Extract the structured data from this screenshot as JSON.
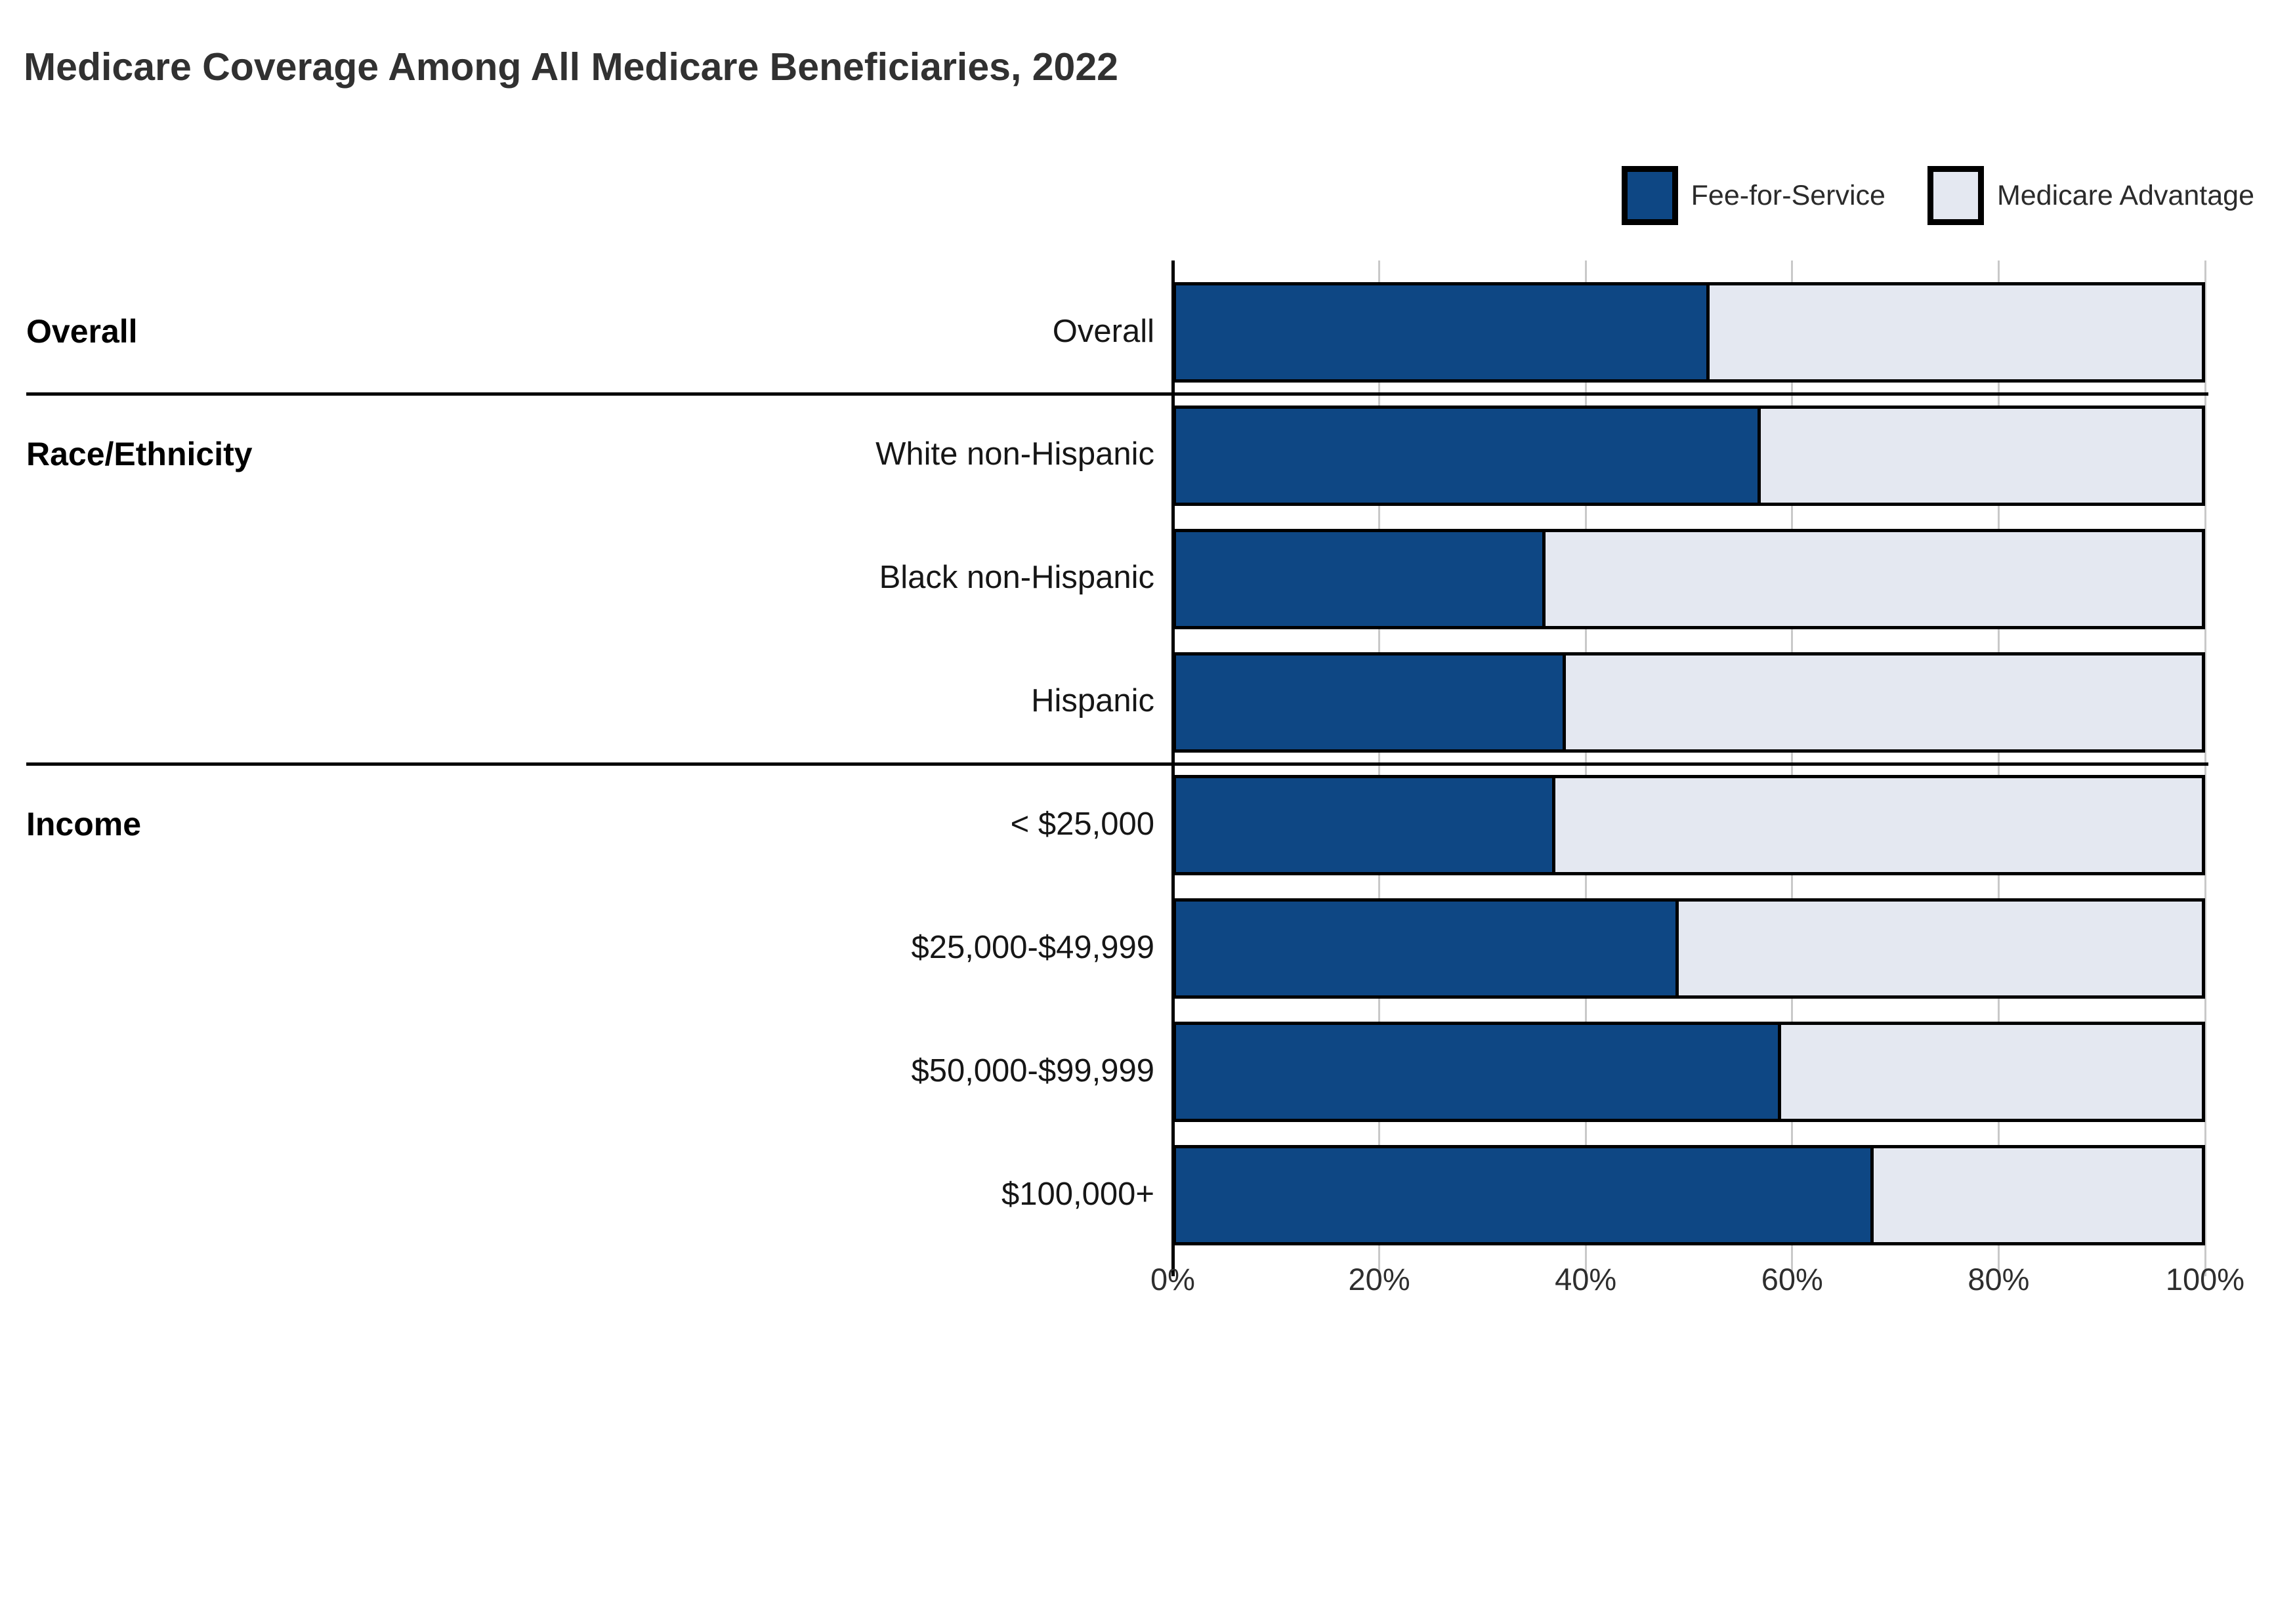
{
  "title": "Medicare Coverage Among All Medicare Beneficiaries, 2022",
  "legend": {
    "items": [
      {
        "label": "Fee-for-Service",
        "color": "#0E4784"
      },
      {
        "label": "Medicare Advantage",
        "color": "#E4E8F1"
      }
    ]
  },
  "chart_data": {
    "type": "bar",
    "stacked": true,
    "orientation": "horizontal",
    "title": "Medicare Coverage Among All Medicare Beneficiaries, 2022",
    "xlabel": "",
    "ylabel": "",
    "xlim": [
      0,
      100
    ],
    "x_tick_labels": [
      "0%",
      "20%",
      "40%",
      "60%",
      "80%",
      "100%"
    ],
    "x_tick_values": [
      0,
      20,
      40,
      60,
      80,
      100
    ],
    "grid": true,
    "legend_position": "top-right",
    "series_names": [
      "Fee-for-Service",
      "Medicare Advantage"
    ],
    "groups": [
      {
        "label": "Overall",
        "rows": [
          {
            "label": "Overall",
            "fee_for_service": 52,
            "medicare_advantage": 48
          }
        ]
      },
      {
        "label": "Race/Ethnicity",
        "rows": [
          {
            "label": "White non-Hispanic",
            "fee_for_service": 57,
            "medicare_advantage": 43
          },
          {
            "label": "Black non-Hispanic",
            "fee_for_service": 36,
            "medicare_advantage": 64
          },
          {
            "label": "Hispanic",
            "fee_for_service": 38,
            "medicare_advantage": 62
          }
        ]
      },
      {
        "label": "Income",
        "rows": [
          {
            "label": "< $25,000",
            "fee_for_service": 37,
            "medicare_advantage": 63
          },
          {
            "label": "$25,000-$49,999",
            "fee_for_service": 49,
            "medicare_advantage": 51
          },
          {
            "label": "$50,000-$99,999",
            "fee_for_service": 59,
            "medicare_advantage": 41
          },
          {
            "label": "$100,000+",
            "fee_for_service": 68,
            "medicare_advantage": 32
          }
        ]
      }
    ],
    "colors": {
      "fee_for_service": "#0E4784",
      "medicare_advantage": "#E4E8F1",
      "bar_border": "#000000",
      "gridline": "#C9C9C9",
      "axis_line": "#000000",
      "separator": "#000000"
    }
  }
}
